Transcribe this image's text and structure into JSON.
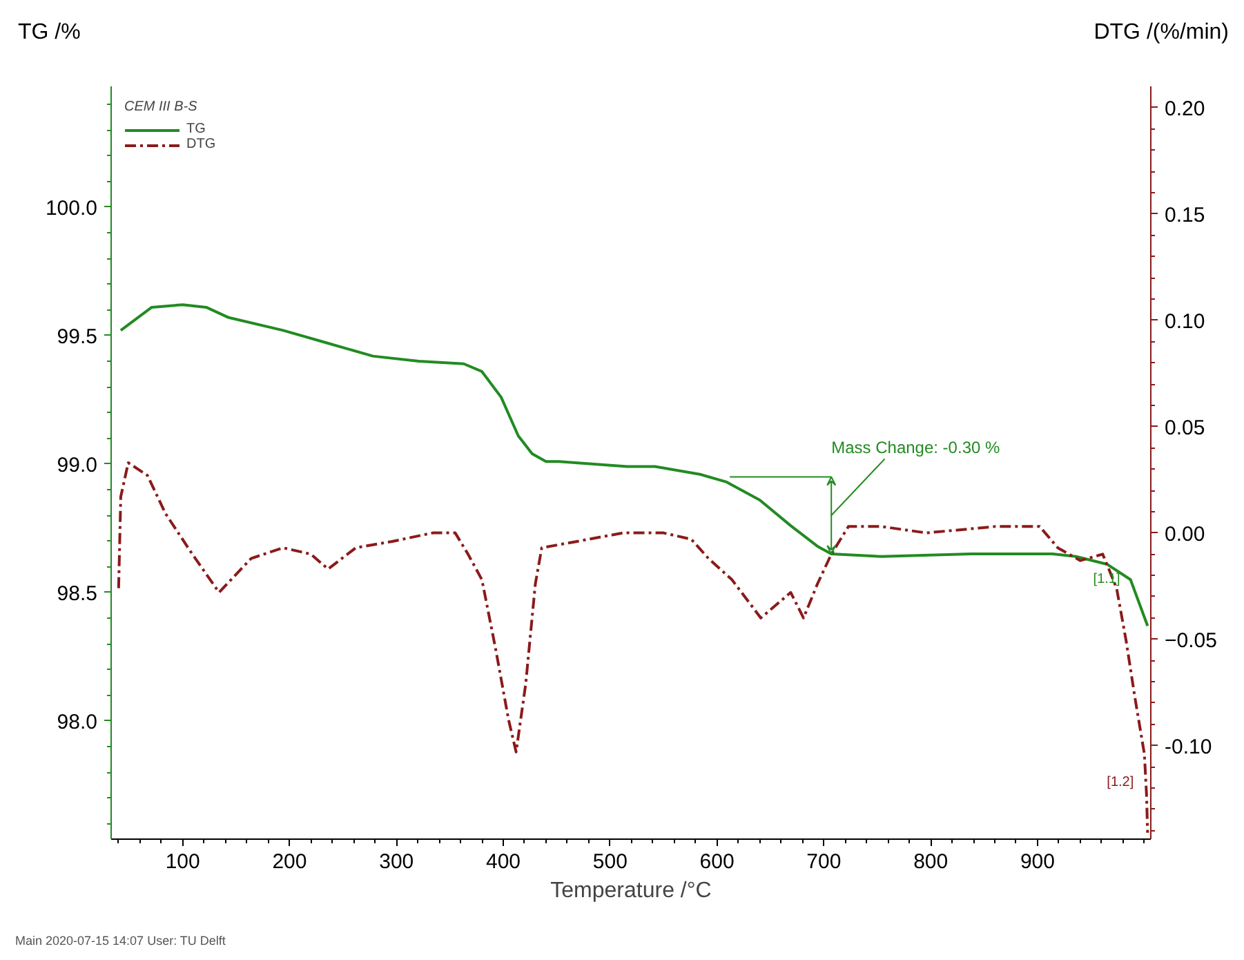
{
  "chart_data": {
    "type": "line",
    "xlabel": "Temperature /°C",
    "ylabel": "TG /%",
    "y2label": "DTG /(%/min)",
    "legend_title": "CEM III B-S",
    "legend": "top left",
    "grid": false,
    "marker": "none",
    "xlim": [
      33,
      1006
    ],
    "xticks": [
      100,
      200,
      300,
      400,
      500,
      600,
      700,
      800,
      900
    ],
    "ylim": [
      97.54,
      100.47
    ],
    "yticks": [
      {
        "value": 98,
        "label": "98.0"
      },
      98.5,
      {
        "value": 99,
        "label": "99.0"
      },
      99.5,
      {
        "value": 100,
        "label": "100.0"
      }
    ],
    "y2lim": [
      -0.144,
      0.21
    ],
    "y2ticks": [
      {
        "value": -0.1,
        "label": "-0.10"
      },
      -0.05,
      {
        "value": 0,
        "label": "0.00"
      },
      0.05,
      {
        "value": 0.1,
        "label": "0.10"
      },
      0.15,
      {
        "value": 0.2,
        "label": "0.20"
      }
    ],
    "series": [
      {
        "name": "TG",
        "color": "#228b22",
        "line_style": "solid",
        "x": [
          42,
          71,
          100,
          122,
          143,
          194,
          236,
          278,
          321,
          363,
          380,
          398,
          414,
          427,
          440,
          452,
          516,
          542,
          584,
          609,
          640,
          669,
          694,
          707,
          754,
          838,
          914,
          936,
          965,
          987,
          1003
        ],
        "values": [
          99.52,
          99.61,
          99.62,
          99.61,
          99.57,
          99.52,
          99.47,
          99.42,
          99.4,
          99.39,
          99.36,
          99.26,
          99.11,
          99.04,
          99.01,
          99.01,
          98.99,
          98.99,
          98.96,
          98.93,
          98.86,
          98.76,
          98.68,
          98.65,
          98.64,
          98.65,
          98.65,
          98.64,
          98.61,
          98.55,
          98.37
        ]
      },
      {
        "name": "DTG",
        "color": "#8b1a1a",
        "line_style": "dashed",
        "axis": "y2",
        "x": [
          40,
          42,
          49,
          67,
          84,
          109,
          134,
          164,
          194,
          220,
          236,
          262,
          296,
          334,
          355,
          367,
          380,
          393,
          405,
          412,
          421,
          430,
          436,
          469,
          512,
          550,
          576,
          592,
          614,
          641,
          669,
          681,
          694,
          707,
          723,
          754,
          796,
          860,
          902,
          919,
          940,
          961,
          974,
          983,
          991,
          1000,
          1002,
          1003
        ],
        "values": [
          -0.026,
          0.017,
          0.033,
          0.027,
          0.009,
          -0.01,
          -0.028,
          -0.012,
          -0.007,
          -0.01,
          -0.017,
          -0.007,
          -0.004,
          0.0,
          0.0,
          -0.01,
          -0.022,
          -0.055,
          -0.088,
          -0.103,
          -0.071,
          -0.024,
          -0.007,
          -0.004,
          0.0,
          0.0,
          -0.003,
          -0.012,
          -0.022,
          -0.04,
          -0.028,
          -0.04,
          -0.024,
          -0.01,
          0.003,
          0.003,
          0.0,
          0.003,
          0.003,
          -0.007,
          -0.013,
          -0.01,
          -0.026,
          -0.051,
          -0.077,
          -0.104,
          -0.123,
          -0.141
        ]
      }
    ],
    "annotations": [
      {
        "text": "Mass Change: -0.30 %",
        "x": 707,
        "y": 98.65
      },
      {
        "text": "[1.1]",
        "x": 985,
        "y": 98.52
      },
      "[1.2]",
      "Main  2020-07-15 14:07   User: TU Delft"
    ]
  }
}
